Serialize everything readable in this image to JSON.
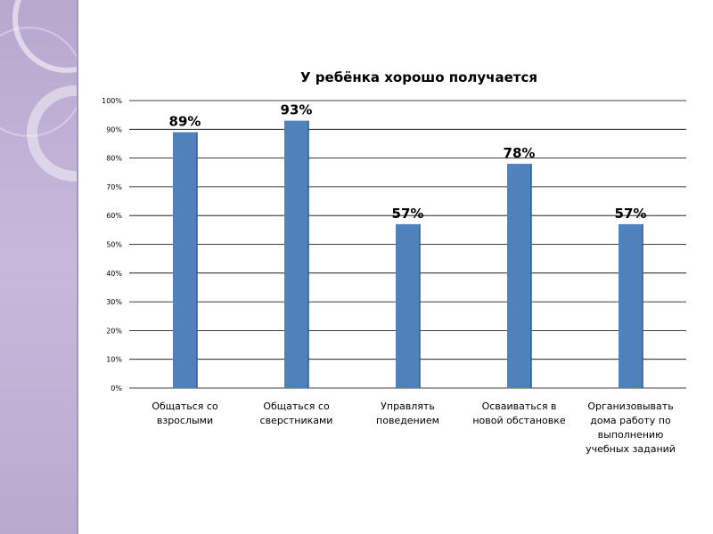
{
  "chart_data": {
    "type": "bar",
    "title": "У ребёнка хорошо получается",
    "categories": [
      [
        "Общаться со",
        "взрослыми"
      ],
      [
        "Общаться со",
        "сверстниками"
      ],
      [
        "Управлять",
        "поведением"
      ],
      [
        "Осваиваться в",
        "новой обстановке"
      ],
      [
        "Организовывать",
        "дома работу по",
        "выполнению",
        "учебных заданий"
      ]
    ],
    "values": [
      89,
      93,
      57,
      78,
      57
    ],
    "data_labels": [
      "89%",
      "93%",
      "57%",
      "78%",
      "57%"
    ],
    "ylim": [
      0,
      100
    ],
    "yticks": [
      "0%",
      "10%",
      "20%",
      "30%",
      "40%",
      "50%",
      "60%",
      "70%",
      "80%",
      "90%",
      "100%"
    ],
    "grid": true,
    "legend": "none",
    "colors": {
      "bar": "#4f81bd",
      "bar_edge": "#2f5f8f",
      "grid": "#000000"
    }
  },
  "decor": {
    "panel_color": "#b8a7cf"
  }
}
